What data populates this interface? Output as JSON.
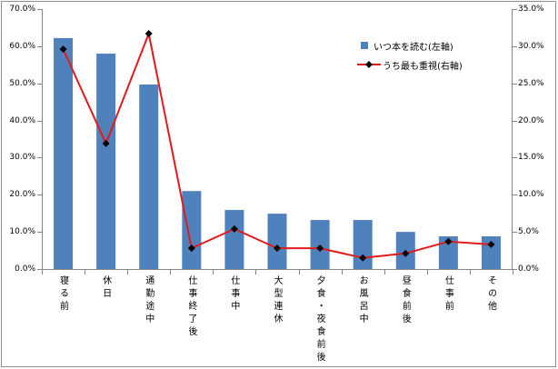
{
  "chart_data": {
    "type": "bar",
    "categories": [
      "寝る前",
      "休日",
      "通勤途中",
      "仕事終了後",
      "仕事中",
      "大型連休",
      "夕食・夜食前後",
      "お風呂中",
      "昼食前後",
      "仕事前",
      "その他"
    ],
    "series": [
      {
        "name": "いつ本を読む(左軸)",
        "type": "bar",
        "axis": "left",
        "color": "#4f81bd",
        "values": [
          62.2,
          58.0,
          49.7,
          21.0,
          15.9,
          14.9,
          13.2,
          13.2,
          10.0,
          8.8,
          8.8
        ]
      },
      {
        "name": "うち最も重視(右軸)",
        "type": "line",
        "axis": "right",
        "color": "#e01b1b",
        "marker": "diamond",
        "marker_color": "#000000",
        "values": [
          29.6,
          16.9,
          31.7,
          2.8,
          5.4,
          2.8,
          2.8,
          1.5,
          2.1,
          3.7,
          3.3
        ]
      }
    ],
    "left_axis": {
      "min": 0,
      "max": 70,
      "step": 10,
      "tick_labels": [
        "0.0%",
        "10.0%",
        "20.0%",
        "30.0%",
        "40.0%",
        "50.0%",
        "60.0%",
        "70.0%"
      ]
    },
    "right_axis": {
      "min": 0,
      "max": 35,
      "step": 5,
      "tick_labels": [
        "0.0%",
        "5.0%",
        "10.0%",
        "15.0%",
        "20.0%",
        "25.0%",
        "30.0%",
        "35.0%"
      ]
    },
    "axis_color": "#868686",
    "grid": false,
    "legend": "top-right"
  }
}
